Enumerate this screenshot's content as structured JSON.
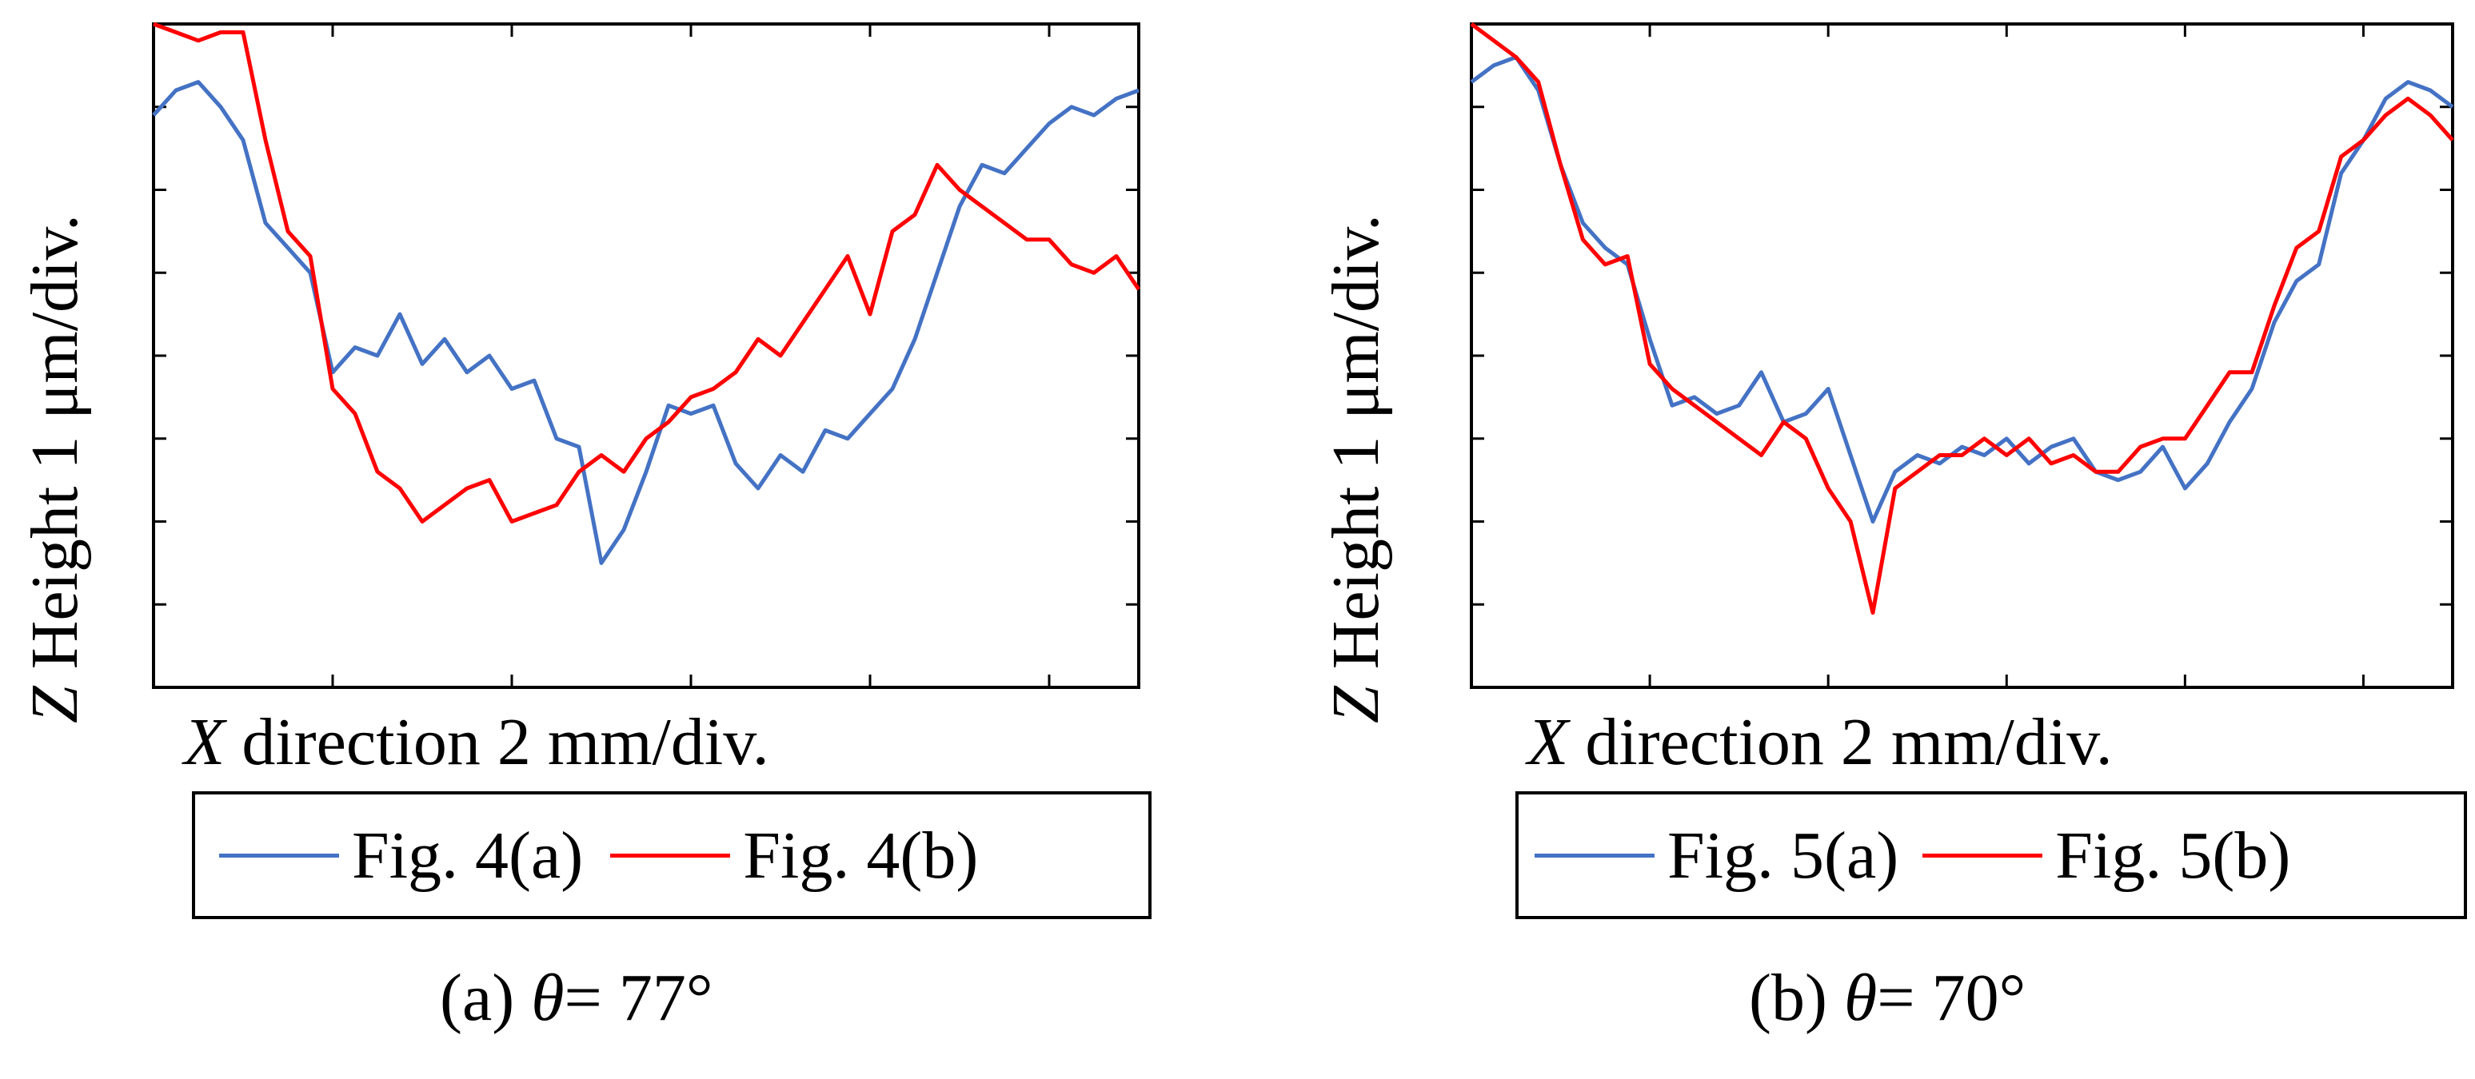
{
  "chart_data": [
    {
      "type": "line",
      "panel": "a",
      "ylabel_italic": "Z",
      "ylabel_rest": " Height 1 μm/div.",
      "xlabel_italic": "X",
      "xlabel_rest": " direction 2 mm/div.",
      "caption_prefix": "(a) ",
      "caption_symbol": "θ",
      "caption_suffix": "= 77°",
      "xlim": [
        0,
        11
      ],
      "ylim": [
        0,
        8
      ],
      "x_divisions": 5.5,
      "y_divisions": 8,
      "grid": false,
      "series": [
        {
          "name": "Fig. 4(a)",
          "color": "#4472C4",
          "x": [
            0,
            0.25,
            0.5,
            0.75,
            1.0,
            1.25,
            1.5,
            1.75,
            2.0,
            2.25,
            2.5,
            2.75,
            3.0,
            3.25,
            3.5,
            3.75,
            4.0,
            4.25,
            4.5,
            4.75,
            5.0,
            5.25,
            5.5,
            5.75,
            6.0,
            6.25,
            6.5,
            6.75,
            7.0,
            7.25,
            7.5,
            7.75,
            8.0,
            8.25,
            8.5,
            8.75,
            9.0,
            9.25,
            9.5,
            9.75,
            10.0,
            10.25,
            10.5,
            10.75,
            11.0
          ],
          "y": [
            6.9,
            7.2,
            7.3,
            7.0,
            6.6,
            5.6,
            5.3,
            5.0,
            3.8,
            4.1,
            4.0,
            4.5,
            3.9,
            4.2,
            3.8,
            4.0,
            3.6,
            3.7,
            3.0,
            2.9,
            1.5,
            1.9,
            2.6,
            3.4,
            3.3,
            3.4,
            2.7,
            2.4,
            2.8,
            2.6,
            3.1,
            3.0,
            3.3,
            3.6,
            4.2,
            5.0,
            5.8,
            6.3,
            6.2,
            6.5,
            6.8,
            7.0,
            6.9,
            7.1,
            7.2
          ]
        },
        {
          "name": "Fig. 4(b)",
          "color": "#FF0000",
          "x": [
            0,
            0.25,
            0.5,
            0.75,
            1.0,
            1.25,
            1.5,
            1.75,
            2.0,
            2.25,
            2.5,
            2.75,
            3.0,
            3.25,
            3.5,
            3.75,
            4.0,
            4.25,
            4.5,
            4.75,
            5.0,
            5.25,
            5.5,
            5.75,
            6.0,
            6.25,
            6.5,
            6.75,
            7.0,
            7.25,
            7.5,
            7.75,
            8.0,
            8.25,
            8.5,
            8.75,
            9.0,
            9.25,
            9.5,
            9.75,
            10.0,
            10.25,
            10.5,
            10.75,
            11.0
          ],
          "y": [
            8.0,
            7.9,
            7.8,
            7.9,
            7.9,
            6.6,
            5.5,
            5.2,
            3.6,
            3.3,
            2.6,
            2.4,
            2.0,
            2.2,
            2.4,
            2.5,
            2.0,
            2.1,
            2.2,
            2.6,
            2.8,
            2.6,
            3.0,
            3.2,
            3.5,
            3.6,
            3.8,
            4.2,
            4.0,
            4.4,
            4.8,
            5.2,
            4.5,
            5.5,
            5.7,
            6.3,
            6.0,
            5.8,
            5.6,
            5.4,
            5.4,
            5.1,
            5.0,
            5.2,
            4.8
          ]
        }
      ]
    },
    {
      "type": "line",
      "panel": "b",
      "ylabel_italic": "Z",
      "ylabel_rest": " Height 1 μm/div.",
      "xlabel_italic": "X",
      "xlabel_rest": " direction 2 mm/div.",
      "caption_prefix": "(b) ",
      "caption_symbol": "θ",
      "caption_suffix": "= 70°",
      "xlim": [
        0,
        11
      ],
      "ylim": [
        0,
        8
      ],
      "x_divisions": 5.5,
      "y_divisions": 8,
      "grid": false,
      "series": [
        {
          "name": "Fig. 5(a)",
          "color": "#4472C4",
          "x": [
            0,
            0.25,
            0.5,
            0.75,
            1.0,
            1.25,
            1.5,
            1.75,
            2.0,
            2.25,
            2.5,
            2.75,
            3.0,
            3.25,
            3.5,
            3.75,
            4.0,
            4.25,
            4.5,
            4.75,
            5.0,
            5.25,
            5.5,
            5.75,
            6.0,
            6.25,
            6.5,
            6.75,
            7.0,
            7.25,
            7.5,
            7.75,
            8.0,
            8.25,
            8.5,
            8.75,
            9.0,
            9.25,
            9.5,
            9.75,
            10.0,
            10.25,
            10.5,
            10.75,
            11.0
          ],
          "y": [
            7.3,
            7.5,
            7.6,
            7.2,
            6.3,
            5.6,
            5.3,
            5.1,
            4.2,
            3.4,
            3.5,
            3.3,
            3.4,
            3.8,
            3.2,
            3.3,
            3.6,
            2.8,
            2.0,
            2.6,
            2.8,
            2.7,
            2.9,
            2.8,
            3.0,
            2.7,
            2.9,
            3.0,
            2.6,
            2.5,
            2.6,
            2.9,
            2.4,
            2.7,
            3.2,
            3.6,
            4.4,
            4.9,
            5.1,
            6.2,
            6.6,
            7.1,
            7.3,
            7.2,
            7.0
          ]
        },
        {
          "name": "Fig. 5(b)",
          "color": "#FF0000",
          "x": [
            0,
            0.25,
            0.5,
            0.75,
            1.0,
            1.25,
            1.5,
            1.75,
            2.0,
            2.25,
            2.5,
            2.75,
            3.0,
            3.25,
            3.5,
            3.75,
            4.0,
            4.25,
            4.5,
            4.75,
            5.0,
            5.25,
            5.5,
            5.75,
            6.0,
            6.25,
            6.5,
            6.75,
            7.0,
            7.25,
            7.5,
            7.75,
            8.0,
            8.25,
            8.5,
            8.75,
            9.0,
            9.25,
            9.5,
            9.75,
            10.0,
            10.25,
            10.5,
            10.75,
            11.0
          ],
          "y": [
            8.0,
            7.8,
            7.6,
            7.3,
            6.3,
            5.4,
            5.1,
            5.2,
            3.9,
            3.6,
            3.4,
            3.2,
            3.0,
            2.8,
            3.2,
            3.0,
            2.4,
            2.0,
            0.9,
            2.4,
            2.6,
            2.8,
            2.8,
            3.0,
            2.8,
            3.0,
            2.7,
            2.8,
            2.6,
            2.6,
            2.9,
            3.0,
            3.0,
            3.4,
            3.8,
            3.8,
            4.6,
            5.3,
            5.5,
            6.4,
            6.6,
            6.9,
            7.1,
            6.9,
            6.6
          ]
        }
      ]
    }
  ]
}
